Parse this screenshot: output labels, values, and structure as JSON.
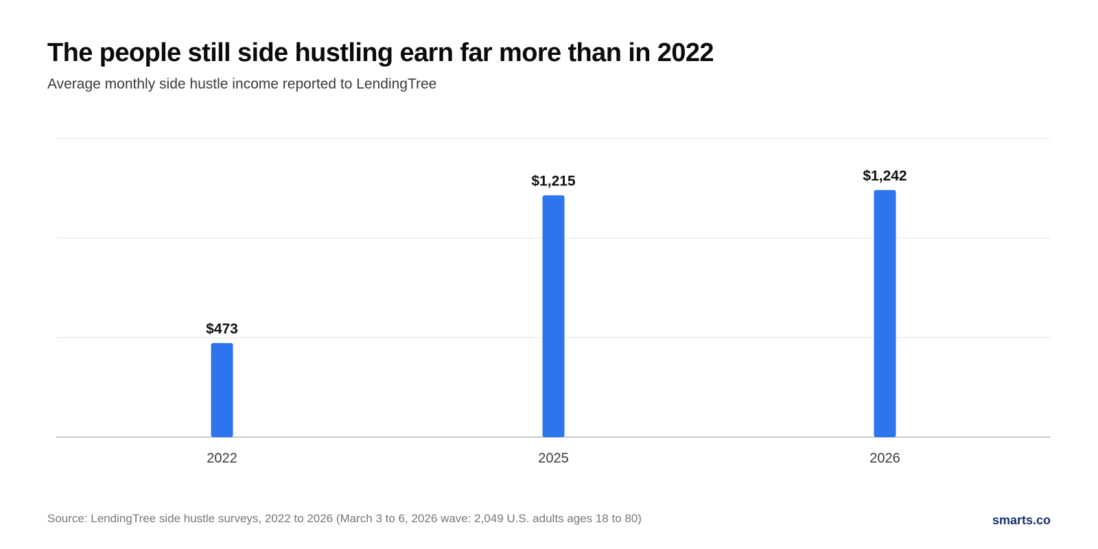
{
  "chart_data": {
    "type": "bar",
    "title": "The people still side hustling earn far more than in 2022",
    "subtitle": "Average monthly side hustle income reported to LendingTree",
    "categories": [
      "2022",
      "2025",
      "2026"
    ],
    "values": [
      473,
      1215,
      1242
    ],
    "value_labels": [
      "$473",
      "$1,215",
      "$1,242"
    ],
    "ylim": [
      0,
      1500
    ],
    "gridline_values": [
      0,
      500,
      1000,
      1500
    ],
    "xlabel": "",
    "ylabel": "",
    "grid": true,
    "bar_color": "#2f74ef"
  },
  "footer": {
    "source": "Source: LendingTree side hustle surveys, 2022 to 2026 (March 3 to 6, 2026 wave: 2,049 U.S. adults ages 18 to 80)",
    "brand": "smarts.co"
  }
}
